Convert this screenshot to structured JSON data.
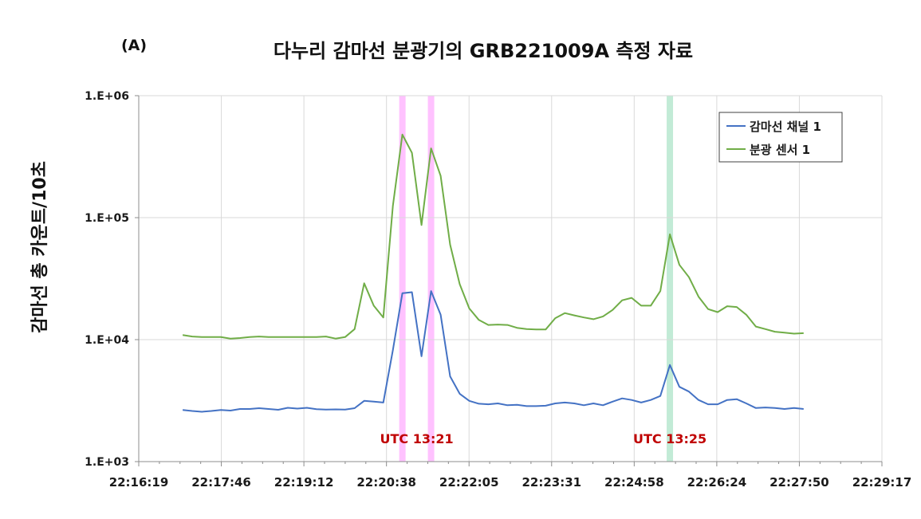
{
  "chart_data": {
    "type": "line",
    "panel_label": "(A)",
    "title": "다누리 감마선 분광기의 GRB221009A 측정 자료",
    "xlabel": "",
    "ylabel": "감마선 총 카운트/10초",
    "y_scale": "log",
    "ylim": [
      1000,
      1000000
    ],
    "y_ticks": [
      "1.E+03",
      "1.E+04",
      "1.E+05",
      "1.E+06"
    ],
    "x_ticks": [
      "22:16:19",
      "22:17:46",
      "22:19:12",
      "22:20:38",
      "22:22:05",
      "22:23:31",
      "22:24:58",
      "22:26:24",
      "22:27:50",
      "22:29:17"
    ],
    "xlim": [
      "22:16:19",
      "22:29:17"
    ],
    "grid": true,
    "legend_position": "top-right",
    "x": [
      "22:17:05",
      "22:17:15",
      "22:17:25",
      "22:17:35",
      "22:17:45",
      "22:17:55",
      "22:18:05",
      "22:18:15",
      "22:18:25",
      "22:18:35",
      "22:18:45",
      "22:18:55",
      "22:19:05",
      "22:19:15",
      "22:19:25",
      "22:19:35",
      "22:19:45",
      "22:19:55",
      "22:20:05",
      "22:20:15",
      "22:20:25",
      "22:20:35",
      "22:20:45",
      "22:20:55",
      "22:21:05",
      "22:21:15",
      "22:21:25",
      "22:21:35",
      "22:21:45",
      "22:21:55",
      "22:22:05",
      "22:22:15",
      "22:22:25",
      "22:22:35",
      "22:22:45",
      "22:22:55",
      "22:23:05",
      "22:23:15",
      "22:23:25",
      "22:23:35",
      "22:23:45",
      "22:23:55",
      "22:24:05",
      "22:24:15",
      "22:24:25",
      "22:24:35",
      "22:24:45",
      "22:24:55",
      "22:25:05",
      "22:25:15",
      "22:25:25",
      "22:25:35",
      "22:25:45",
      "22:25:55",
      "22:26:05",
      "22:26:15",
      "22:26:25",
      "22:26:35",
      "22:26:45",
      "22:26:55",
      "22:27:05",
      "22:27:15",
      "22:27:25",
      "22:27:35",
      "22:27:45",
      "22:27:55"
    ],
    "series": [
      {
        "name": "감마선 채널 1",
        "color": "#4472c4",
        "values": [
          2650,
          2600,
          2560,
          2600,
          2650,
          2620,
          2700,
          2700,
          2740,
          2700,
          2660,
          2760,
          2720,
          2760,
          2690,
          2670,
          2680,
          2670,
          2740,
          3150,
          3100,
          3050,
          8200,
          24000,
          24500,
          7300,
          25000,
          16000,
          5000,
          3600,
          3150,
          2980,
          2950,
          3000,
          2900,
          2920,
          2850,
          2850,
          2870,
          3000,
          3050,
          3000,
          2900,
          3000,
          2900,
          3100,
          3300,
          3200,
          3050,
          3200,
          3450,
          6200,
          4100,
          3750,
          3200,
          2950,
          2950,
          3200,
          3250,
          3000,
          2750,
          2780,
          2750,
          2700,
          2750,
          2700
        ]
      },
      {
        "name": "분광 센서 1",
        "color": "#70ad47",
        "values": [
          10900,
          10600,
          10500,
          10500,
          10500,
          10200,
          10300,
          10500,
          10600,
          10500,
          10500,
          10500,
          10500,
          10500,
          10500,
          10600,
          10200,
          10500,
          12200,
          29000,
          19000,
          15200,
          125000,
          480000,
          340000,
          87000,
          370000,
          220000,
          60000,
          28500,
          18000,
          14500,
          13200,
          13300,
          13200,
          12500,
          12200,
          12100,
          12100,
          15000,
          16500,
          15800,
          15200,
          14700,
          15500,
          17500,
          21000,
          22000,
          19000,
          19000,
          25000,
          73000,
          41000,
          32500,
          22500,
          17800,
          16800,
          18800,
          18500,
          16000,
          12800,
          12200,
          11600,
          11400,
          11200,
          11300
        ]
      }
    ],
    "annotations": [
      {
        "label": "UTC 13:21",
        "color": "#c00000",
        "bands": [
          "22:20:55",
          "22:21:25"
        ],
        "band_color": "#ff66ff"
      },
      {
        "label": "UTC 13:25",
        "color": "#c00000",
        "bands": [
          "22:25:35"
        ],
        "band_color": "#66cc99"
      }
    ]
  }
}
